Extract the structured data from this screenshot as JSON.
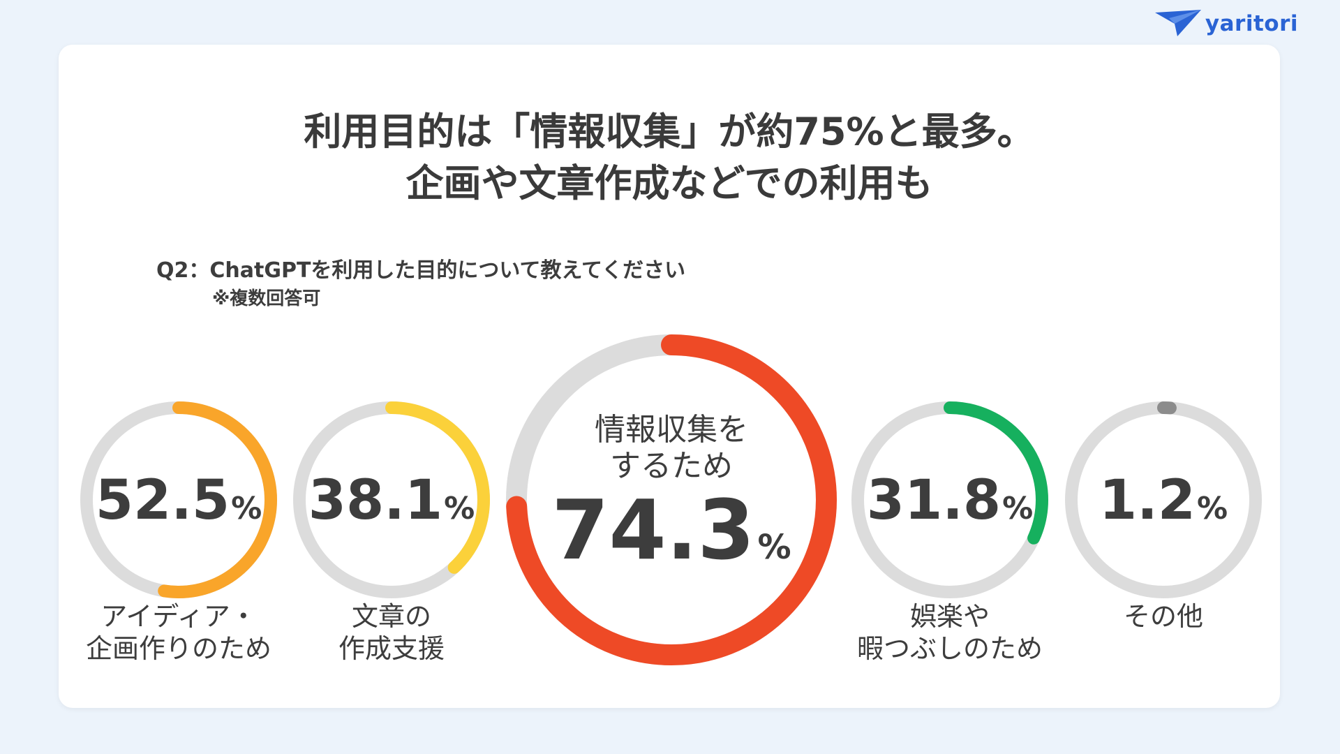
{
  "brand": {
    "name": "yaritori"
  },
  "headline": {
    "line1": "利用目的は「情報収集」が約75%と最多。",
    "line2": "企画や文章作成などでの利用も"
  },
  "question": {
    "text": "Q2：ChatGPTを利用した目的について教えてください",
    "note": "※複数回答可"
  },
  "chart_data": {
    "type": "donut",
    "unit": "%",
    "max": 100,
    "items": [
      {
        "label_lines": [
          "アイディア・",
          "企画作りのため"
        ],
        "value": 52.5,
        "value_text": "52.5",
        "color": "#f9a52a"
      },
      {
        "label_lines": [
          "文章の",
          "作成支援"
        ],
        "value": 38.1,
        "value_text": "38.1",
        "color": "#fbd13a"
      },
      {
        "label_lines": [
          "情報収集を",
          "するため"
        ],
        "value": 74.3,
        "value_text": "74.3",
        "color": "#ee4a26",
        "featured": true
      },
      {
        "label_lines": [
          "娯楽や",
          "暇つぶしのため"
        ],
        "value": 31.8,
        "value_text": "31.8",
        "color": "#16b05e"
      },
      {
        "label_lines": [
          "その他"
        ],
        "value": 1.2,
        "value_text": "1.2",
        "color": "#8c8c8c"
      }
    ],
    "track_color": "#dcdcdc"
  }
}
